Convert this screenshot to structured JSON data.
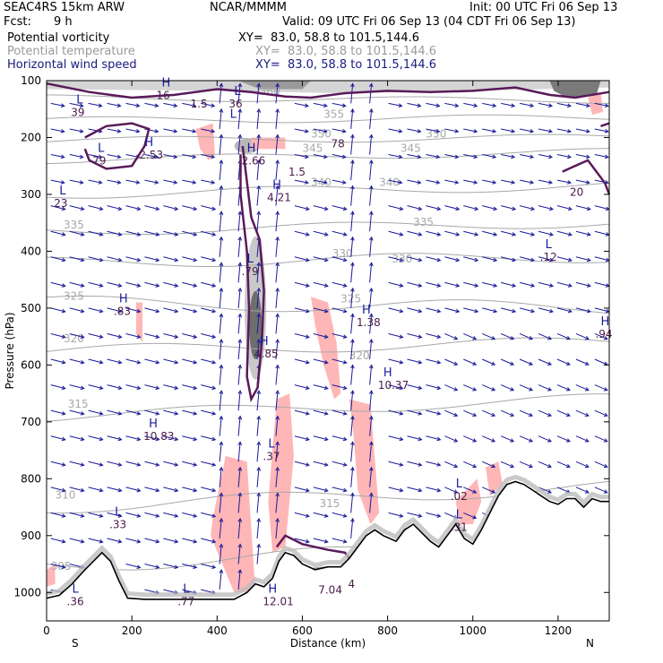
{
  "header": {
    "model": "SEAC4RS 15km ARW",
    "org": "NCAR/MMMM",
    "init": "Init: 00 UTC Fri 06 Sep 13",
    "fcst_label": "Fcst:",
    "fcst_value": "9 h",
    "valid": "Valid: 09 UTC Fri 06 Sep 13 (04 CDT Fri 06 Sep 13)",
    "fields": [
      {
        "name": "Potential vorticity",
        "xy": "XY=  83.0, 58.8 to 101.5,144.6",
        "color": "#000000"
      },
      {
        "name": "Potential temperature",
        "xy": "XY=  83.0, 58.8 to 101.5,144.6",
        "color": "#9a9a9a"
      },
      {
        "name": "Horizontal wind speed",
        "xy": "XY=  83.0, 58.8 to 101.5,144.6",
        "color": "#1a1a80"
      }
    ]
  },
  "colors": {
    "pv_fill": "#ffb6b6",
    "wind_contour": "#5a1a5a",
    "theta": "#a8a8a8",
    "vectors": "#1a1a9a",
    "terrain_shade": "#bdbdbd"
  },
  "chart_data": {
    "type": "heatmap",
    "description_fields": [
      "Potential vorticity",
      "Potential temperature",
      "Horizontal wind speed"
    ],
    "xlabel": "Distance (km)",
    "ylabel": "Pressure (hPa)",
    "xlim": [
      0,
      1320
    ],
    "ylim": [
      1050,
      100
    ],
    "x_ticks": [
      0,
      200,
      400,
      600,
      800,
      1000,
      1200
    ],
    "y_ticks": [
      100,
      200,
      300,
      400,
      500,
      600,
      700,
      800,
      900,
      1000
    ],
    "x_end_labels": {
      "left": "S",
      "right": "N"
    },
    "theta_contours": [
      {
        "label": "305",
        "x": 10,
        "p": 960
      },
      {
        "label": "310",
        "x": 20,
        "p": 835
      },
      {
        "label": "315",
        "x": 50,
        "p": 675
      },
      {
        "label": "320",
        "x": 40,
        "p": 560
      },
      {
        "label": "325",
        "x": 40,
        "p": 485
      },
      {
        "label": "330",
        "x": 670,
        "p": 410
      },
      {
        "label": "335",
        "x": 40,
        "p": 360
      },
      {
        "label": "340",
        "x": 620,
        "p": 285
      },
      {
        "label": "345",
        "x": 600,
        "p": 225
      },
      {
        "label": "350",
        "x": 620,
        "p": 200
      },
      {
        "label": "355",
        "x": 650,
        "p": 165
      },
      {
        "label": "360",
        "x": 500,
        "p": 125
      },
      {
        "label": "330",
        "x": 810,
        "p": 420
      },
      {
        "label": "325",
        "x": 690,
        "p": 490
      },
      {
        "label": "320",
        "x": 710,
        "p": 590
      },
      {
        "label": "315",
        "x": 640,
        "p": 850
      },
      {
        "label": "335",
        "x": 860,
        "p": 355
      },
      {
        "label": "340",
        "x": 780,
        "p": 285
      },
      {
        "label": "345",
        "x": 830,
        "p": 225
      },
      {
        "label": "350",
        "x": 890,
        "p": 200
      }
    ],
    "extrema": [
      {
        "type": "L",
        "value": "39",
        "x": 70,
        "p": 140
      },
      {
        "type": "H",
        "value": "16",
        "x": 270,
        "p": 110
      },
      {
        "type": "",
        "value": "1.5",
        "x": 350,
        "p": 125
      },
      {
        "type": "L",
        "value": "36",
        "x": 440,
        "p": 125
      },
      {
        "type": "L",
        "value": "",
        "x": 430,
        "p": 165
      },
      {
        "type": "H",
        "value": "2.53",
        "x": 230,
        "p": 215
      },
      {
        "type": "L",
        "value": "79",
        "x": 120,
        "p": 225
      },
      {
        "type": "H",
        "value": "2.66",
        "x": 470,
        "p": 225
      },
      {
        "type": "",
        "value": "1.5",
        "x": 580,
        "p": 245
      },
      {
        "type": "",
        "value": "78",
        "x": 680,
        "p": 195
      },
      {
        "type": "L",
        "value": "23",
        "x": 30,
        "p": 300
      },
      {
        "type": "H",
        "value": "4.21",
        "x": 530,
        "p": 290
      },
      {
        "type": "L",
        "value": ".79",
        "x": 470,
        "p": 420
      },
      {
        "type": "H",
        "value": ".83",
        "x": 170,
        "p": 490
      },
      {
        "type": "H",
        "value": "1.38",
        "x": 740,
        "p": 510
      },
      {
        "type": "H",
        "value": "4.85",
        "x": 500,
        "p": 565
      },
      {
        "type": "H",
        "value": "10.37",
        "x": 790,
        "p": 620
      },
      {
        "type": "H",
        "value": "10.83",
        "x": 240,
        "p": 710
      },
      {
        "type": "L",
        "value": ".37",
        "x": 520,
        "p": 745
      },
      {
        "type": "L",
        "value": ".12",
        "x": 1170,
        "p": 395
      },
      {
        "type": "",
        "value": "20",
        "x": 1240,
        "p": 280
      },
      {
        "type": "H",
        "value": ".94",
        "x": 1300,
        "p": 530
      },
      {
        "type": "L",
        "value": ".02",
        "x": 960,
        "p": 815
      },
      {
        "type": "L",
        "value": ".33",
        "x": 160,
        "p": 865
      },
      {
        "type": "L",
        "value": ".31",
        "x": 960,
        "p": 870
      },
      {
        "type": "L",
        "value": ".36",
        "x": 60,
        "p": 1000
      },
      {
        "type": "L",
        "value": ".77",
        "x": 320,
        "p": 1000
      },
      {
        "type": "H",
        "value": "12.01",
        "x": 520,
        "p": 1000
      },
      {
        "type": "",
        "value": "7.04",
        "x": 650,
        "p": 980
      },
      {
        "type": "",
        "value": "4",
        "x": 720,
        "p": 970
      }
    ],
    "terrain": [
      [
        0,
        1010
      ],
      [
        30,
        1005
      ],
      [
        60,
        985
      ],
      [
        90,
        960
      ],
      [
        110,
        945
      ],
      [
        130,
        930
      ],
      [
        150,
        945
      ],
      [
        170,
        980
      ],
      [
        190,
        1010
      ],
      [
        230,
        1012
      ],
      [
        300,
        1012
      ],
      [
        380,
        1012
      ],
      [
        440,
        1012
      ],
      [
        470,
        1000
      ],
      [
        490,
        985
      ],
      [
        510,
        990
      ],
      [
        530,
        975
      ],
      [
        545,
        945
      ],
      [
        560,
        930
      ],
      [
        580,
        935
      ],
      [
        600,
        950
      ],
      [
        630,
        960
      ],
      [
        660,
        955
      ],
      [
        690,
        955
      ],
      [
        710,
        940
      ],
      [
        730,
        920
      ],
      [
        750,
        900
      ],
      [
        770,
        890
      ],
      [
        790,
        900
      ],
      [
        820,
        910
      ],
      [
        840,
        890
      ],
      [
        860,
        880
      ],
      [
        880,
        895
      ],
      [
        900,
        910
      ],
      [
        920,
        920
      ],
      [
        940,
        900
      ],
      [
        960,
        880
      ],
      [
        980,
        905
      ],
      [
        1000,
        915
      ],
      [
        1020,
        890
      ],
      [
        1040,
        860
      ],
      [
        1060,
        830
      ],
      [
        1080,
        810
      ],
      [
        1100,
        805
      ],
      [
        1120,
        810
      ],
      [
        1140,
        820
      ],
      [
        1160,
        830
      ],
      [
        1180,
        840
      ],
      [
        1200,
        845
      ],
      [
        1220,
        835
      ],
      [
        1240,
        835
      ],
      [
        1260,
        850
      ],
      [
        1280,
        835
      ],
      [
        1300,
        840
      ],
      [
        1320,
        840
      ]
    ]
  }
}
